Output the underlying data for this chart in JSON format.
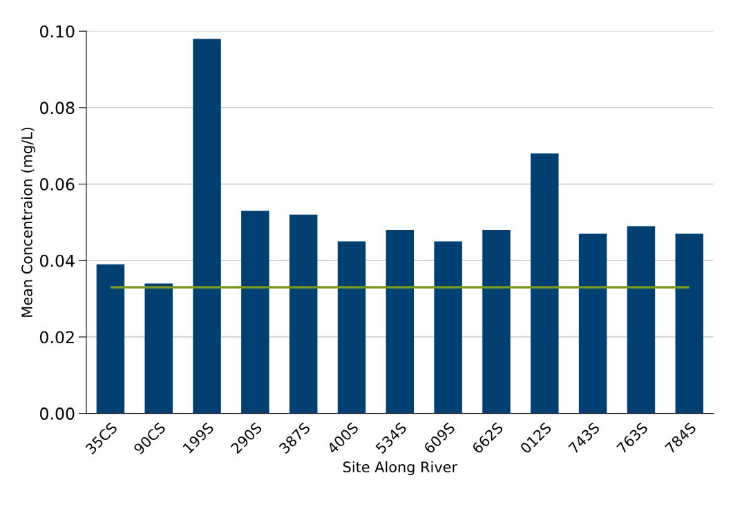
{
  "chart_data": {
    "type": "bar",
    "xlabel": "Site Along River",
    "ylabel": "Mean Concentraion (mg/L)",
    "categories": [
      "35CS",
      "90CS",
      "199S",
      "290S",
      "387S",
      "400S",
      "534S",
      "609S",
      "662S",
      "012S",
      "743S",
      "763S",
      "784S"
    ],
    "values": [
      0.039,
      0.034,
      0.098,
      0.053,
      0.052,
      0.045,
      0.048,
      0.045,
      0.048,
      0.068,
      0.047,
      0.049,
      0.047
    ],
    "color": "#003f72",
    "ylim": [
      0,
      0.1
    ],
    "yticks": [
      {
        "value": 0,
        "label": "0.00"
      },
      {
        "value": 0.02,
        "label": "0.02"
      },
      {
        "value": 0.04,
        "label": "0.04"
      },
      {
        "value": 0.06,
        "label": "0.06"
      },
      {
        "value": 0.08,
        "label": "0.08"
      },
      {
        "value": 0.1,
        "label": "0.10"
      }
    ],
    "grid": "y",
    "ref_lines": [
      {
        "axis": "y",
        "value": 0.033,
        "color": "#7a9a1e",
        "line_style": "solid"
      }
    ]
  }
}
